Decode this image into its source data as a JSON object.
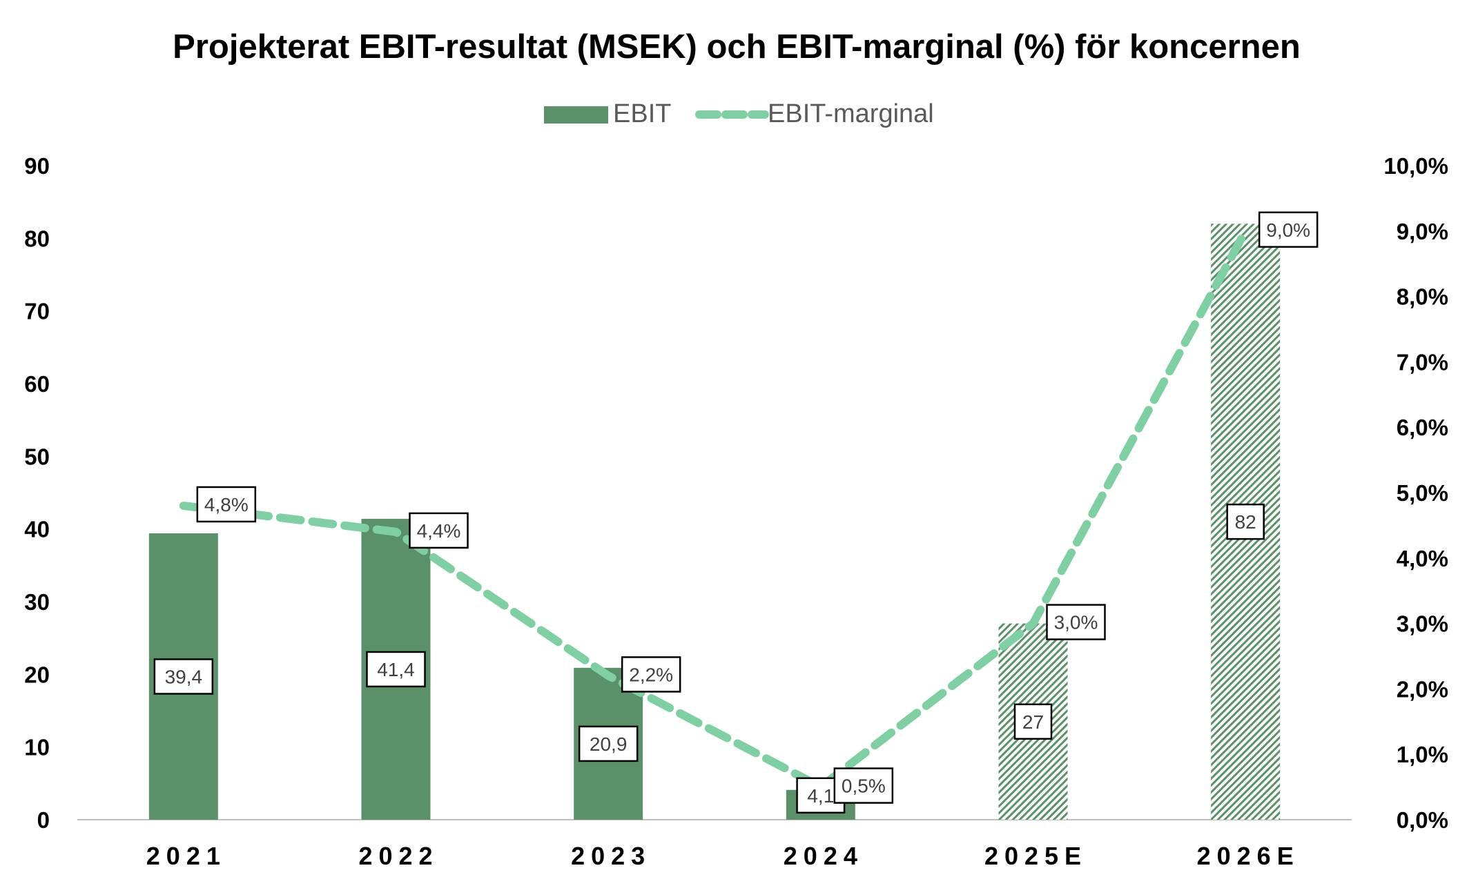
{
  "chart_data": {
    "type": "bar",
    "title": "Projekterat EBIT-resultat (MSEK) och EBIT-marginal (%) för koncernen",
    "categories": [
      "2021",
      "2022",
      "2023",
      "2024",
      "2025E",
      "2026E"
    ],
    "category_labels": [
      "2021",
      "2022",
      "2023",
      "2024",
      "2025E",
      "2026E"
    ],
    "series": [
      {
        "name": "EBIT",
        "kind": "bar",
        "axis": "left",
        "values": [
          39.4,
          41.4,
          20.9,
          4.1,
          27,
          82
        ],
        "value_labels": [
          "39,4",
          "41,4",
          "20,9",
          "4,1",
          "27",
          "82"
        ],
        "forecast": [
          false,
          false,
          false,
          false,
          true,
          true
        ],
        "color": "#5b9169"
      },
      {
        "name": "EBIT-marginal",
        "kind": "line",
        "style": "dashed",
        "axis": "right",
        "values": [
          4.8,
          4.4,
          2.2,
          0.5,
          3.0,
          9.0
        ],
        "value_labels": [
          "4,8%",
          "4,4%",
          "2,2%",
          "0,5%",
          "3,0%",
          "9,0%"
        ],
        "color": "#7ecfa2"
      }
    ],
    "y_left": {
      "range": [
        0,
        90
      ],
      "ticks": [
        0,
        10,
        20,
        30,
        40,
        50,
        60,
        70,
        80,
        90
      ],
      "tick_labels": [
        "0",
        "10",
        "20",
        "30",
        "40",
        "50",
        "60",
        "70",
        "80",
        "90"
      ]
    },
    "y_right": {
      "range": [
        0,
        10
      ],
      "ticks": [
        0,
        1,
        2,
        3,
        4,
        5,
        6,
        7,
        8,
        9,
        10
      ],
      "tick_labels": [
        "0,0%",
        "1,0%",
        "2,0%",
        "3,0%",
        "4,0%",
        "5,0%",
        "6,0%",
        "7,0%",
        "8,0%",
        "9,0%",
        "10,0%"
      ]
    },
    "grid": false,
    "legend_position": "top-center",
    "colors": {
      "bar": "#5b9169",
      "line": "#7ecfa2",
      "hatch": "#5b9169"
    }
  }
}
